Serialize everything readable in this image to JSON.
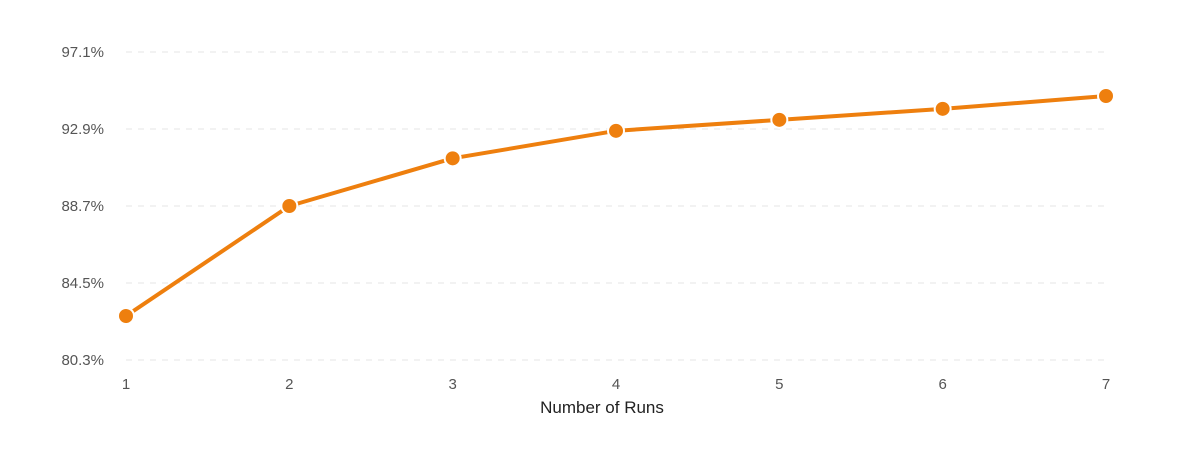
{
  "chart_data": {
    "type": "line",
    "title": "",
    "xlabel": "Number of Runs",
    "ylabel": "",
    "x": [
      1,
      2,
      3,
      4,
      5,
      6,
      7
    ],
    "x_tick_labels": [
      "1",
      "2",
      "3",
      "4",
      "5",
      "6",
      "7"
    ],
    "y_tick_values": [
      80.3,
      84.5,
      88.7,
      92.9,
      97.1
    ],
    "y_tick_labels": [
      "80.3%",
      "84.5%",
      "88.7%",
      "92.9%",
      "97.1%"
    ],
    "ylim": [
      80.3,
      97.1
    ],
    "grid": true,
    "legend": "none",
    "series": [
      {
        "values": [
          82.7,
          88.7,
          91.3,
          92.8,
          93.4,
          94.0,
          94.7
        ],
        "color": "#ee7f0e"
      }
    ]
  }
}
